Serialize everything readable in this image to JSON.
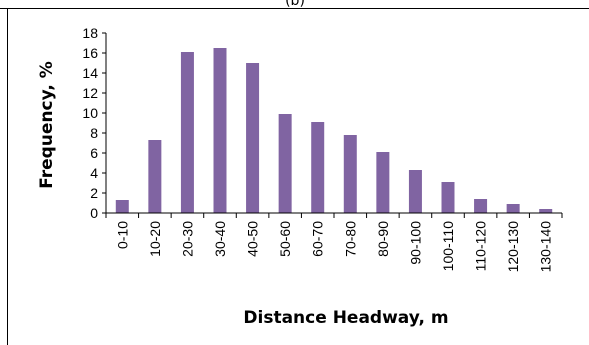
{
  "figure_label": "(b)",
  "chart_data": {
    "type": "bar",
    "title": "",
    "xlabel": "Distance Headway, m",
    "ylabel": "Frequency, %",
    "ylim": [
      0,
      18
    ],
    "yticks": [
      0,
      2,
      4,
      6,
      8,
      10,
      12,
      14,
      16,
      18
    ],
    "grid": false,
    "legend": "none",
    "bar_color": "#8064A2",
    "categories": [
      "0-10",
      "10-20",
      "20-30",
      "30-40",
      "40-50",
      "50-60",
      "60-70",
      "70-80",
      "80-90",
      "90-100",
      "100-110",
      "110-120",
      "120-130",
      "130-140"
    ],
    "values": [
      1.3,
      7.3,
      16.1,
      16.5,
      15.0,
      9.9,
      9.1,
      7.8,
      6.1,
      4.3,
      3.1,
      1.4,
      0.9,
      0.4
    ]
  }
}
